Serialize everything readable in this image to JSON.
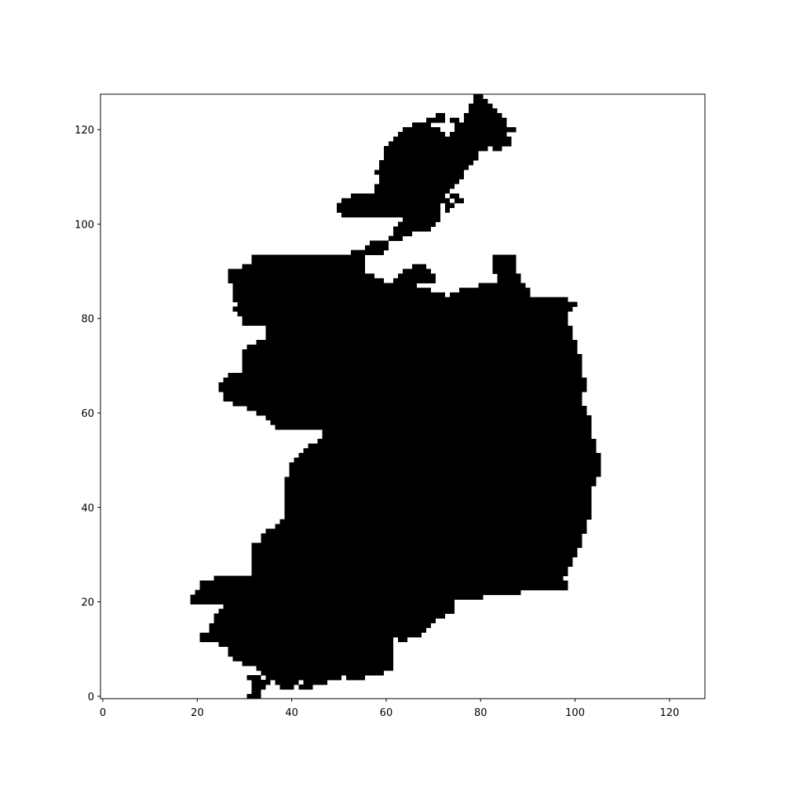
{
  "chart_data": {
    "type": "heatmap",
    "title": "",
    "xlabel": "",
    "ylabel": "",
    "xlim": [
      -0.5,
      127.5
    ],
    "ylim": [
      -0.5,
      127.5
    ],
    "x_ticks": [
      0,
      20,
      40,
      60,
      80,
      100,
      120
    ],
    "y_ticks": [
      0,
      20,
      40,
      60,
      80,
      100,
      120
    ],
    "x_tick_labels": [
      "0",
      "20",
      "40",
      "60",
      "80",
      "100",
      "120"
    ],
    "y_tick_labels": [
      "0",
      "20",
      "40",
      "60",
      "80",
      "100",
      "120"
    ],
    "grid": false,
    "legend": "none",
    "colormap": {
      "0": "#ffffff",
      "1": "#000000"
    },
    "land_row_spans": [
      [
        0,
        [
          [
            31,
            33
          ]
        ]
      ],
      [
        1,
        [
          [
            32,
            33
          ]
        ]
      ],
      [
        2,
        [
          [
            32,
            34
          ],
          [
            38,
            40
          ],
          [
            42,
            44
          ]
        ]
      ],
      [
        3,
        [
          [
            32,
            35
          ],
          [
            37,
            41
          ],
          [
            43,
            47
          ]
        ]
      ],
      [
        4,
        [
          [
            31,
            33
          ],
          [
            35,
            50
          ],
          [
            52,
            55
          ]
        ]
      ],
      [
        5,
        [
          [
            34,
            59
          ]
        ]
      ],
      [
        6,
        [
          [
            33,
            61
          ]
        ]
      ],
      [
        7,
        [
          [
            30,
            61
          ]
        ]
      ],
      [
        8,
        [
          [
            28,
            61
          ]
        ]
      ],
      [
        9,
        [
          [
            27,
            61
          ]
        ]
      ],
      [
        10,
        [
          [
            27,
            61
          ]
        ]
      ],
      [
        11,
        [
          [
            25,
            61
          ]
        ]
      ],
      [
        12,
        [
          [
            21,
            61
          ],
          [
            63,
            64
          ]
        ]
      ],
      [
        13,
        [
          [
            21,
            67
          ]
        ]
      ],
      [
        14,
        [
          [
            23,
            68
          ]
        ]
      ],
      [
        15,
        [
          [
            23,
            69
          ]
        ]
      ],
      [
        16,
        [
          [
            24,
            70
          ]
        ]
      ],
      [
        17,
        [
          [
            24,
            72
          ]
        ]
      ],
      [
        18,
        [
          [
            25,
            74
          ]
        ]
      ],
      [
        19,
        [
          [
            26,
            74
          ]
        ]
      ],
      [
        20,
        [
          [
            19,
            74
          ]
        ]
      ],
      [
        21,
        [
          [
            19,
            80
          ]
        ]
      ],
      [
        22,
        [
          [
            20,
            88
          ]
        ]
      ],
      [
        23,
        [
          [
            21,
            98
          ]
        ]
      ],
      [
        24,
        [
          [
            21,
            98
          ]
        ]
      ],
      [
        25,
        [
          [
            24,
            97
          ]
        ]
      ],
      [
        26,
        [
          [
            32,
            98
          ]
        ]
      ],
      [
        27,
        [
          [
            32,
            98
          ]
        ]
      ],
      [
        28,
        [
          [
            32,
            99
          ]
        ]
      ],
      [
        29,
        [
          [
            32,
            99
          ]
        ]
      ],
      [
        30,
        [
          [
            32,
            100
          ]
        ]
      ],
      [
        31,
        [
          [
            32,
            100
          ]
        ]
      ],
      [
        32,
        [
          [
            32,
            101
          ]
        ]
      ],
      [
        33,
        [
          [
            34,
            101
          ]
        ]
      ],
      [
        34,
        [
          [
            34,
            101
          ]
        ]
      ],
      [
        35,
        [
          [
            35,
            102
          ]
        ]
      ],
      [
        36,
        [
          [
            37,
            102
          ]
        ]
      ],
      [
        37,
        [
          [
            38,
            102
          ]
        ]
      ],
      [
        38,
        [
          [
            39,
            103
          ]
        ]
      ],
      [
        39,
        [
          [
            39,
            103
          ]
        ]
      ],
      [
        40,
        [
          [
            39,
            103
          ]
        ]
      ],
      [
        41,
        [
          [
            39,
            103
          ]
        ]
      ],
      [
        42,
        [
          [
            39,
            103
          ]
        ]
      ],
      [
        43,
        [
          [
            39,
            103
          ]
        ]
      ],
      [
        44,
        [
          [
            39,
            103
          ]
        ]
      ],
      [
        45,
        [
          [
            39,
            104
          ]
        ]
      ],
      [
        46,
        [
          [
            39,
            104
          ]
        ]
      ],
      [
        47,
        [
          [
            40,
            105
          ]
        ]
      ],
      [
        48,
        [
          [
            40,
            105
          ]
        ]
      ],
      [
        49,
        [
          [
            40,
            105
          ]
        ]
      ],
      [
        50,
        [
          [
            41,
            105
          ]
        ]
      ],
      [
        51,
        [
          [
            42,
            105
          ]
        ]
      ],
      [
        52,
        [
          [
            43,
            104
          ]
        ]
      ],
      [
        53,
        [
          [
            44,
            104
          ]
        ]
      ],
      [
        54,
        [
          [
            46,
            104
          ]
        ]
      ],
      [
        55,
        [
          [
            47,
            103
          ]
        ]
      ],
      [
        56,
        [
          [
            47,
            103
          ]
        ]
      ],
      [
        57,
        [
          [
            37,
            103
          ]
        ]
      ],
      [
        58,
        [
          [
            36,
            103
          ]
        ]
      ],
      [
        59,
        [
          [
            35,
            103
          ]
        ]
      ],
      [
        60,
        [
          [
            33,
            102
          ]
        ]
      ],
      [
        61,
        [
          [
            31,
            102
          ]
        ]
      ],
      [
        62,
        [
          [
            28,
            101
          ]
        ]
      ],
      [
        63,
        [
          [
            26,
            101
          ]
        ]
      ],
      [
        64,
        [
          [
            26,
            101
          ]
        ]
      ],
      [
        65,
        [
          [
            25,
            102
          ]
        ]
      ],
      [
        66,
        [
          [
            25,
            102
          ]
        ]
      ],
      [
        67,
        [
          [
            26,
            102
          ]
        ]
      ],
      [
        68,
        [
          [
            27,
            101
          ]
        ]
      ],
      [
        69,
        [
          [
            30,
            101
          ]
        ]
      ],
      [
        70,
        [
          [
            30,
            101
          ]
        ]
      ],
      [
        71,
        [
          [
            30,
            101
          ]
        ]
      ],
      [
        72,
        [
          [
            30,
            101
          ]
        ]
      ],
      [
        73,
        [
          [
            30,
            100
          ]
        ]
      ],
      [
        74,
        [
          [
            31,
            100
          ]
        ]
      ],
      [
        75,
        [
          [
            33,
            100
          ]
        ]
      ],
      [
        76,
        [
          [
            35,
            99
          ]
        ]
      ],
      [
        77,
        [
          [
            35,
            99
          ]
        ]
      ],
      [
        78,
        [
          [
            35,
            99
          ]
        ]
      ],
      [
        79,
        [
          [
            30,
            98
          ]
        ]
      ],
      [
        80,
        [
          [
            30,
            98
          ]
        ]
      ],
      [
        81,
        [
          [
            29,
            98
          ]
        ]
      ],
      [
        82,
        [
          [
            28,
            99
          ]
        ]
      ],
      [
        83,
        [
          [
            29,
            100
          ]
        ]
      ],
      [
        84,
        [
          [
            28,
            98
          ]
        ]
      ],
      [
        85,
        [
          [
            28,
            72
          ],
          [
            74,
            90
          ]
        ]
      ],
      [
        86,
        [
          [
            28,
            69
          ],
          [
            76,
            90
          ]
        ]
      ],
      [
        87,
        [
          [
            28,
            66
          ],
          [
            80,
            89
          ]
        ]
      ],
      [
        88,
        [
          [
            27,
            59
          ],
          [
            62,
            70
          ],
          [
            84,
            88
          ]
        ]
      ],
      [
        89,
        [
          [
            27,
            57
          ],
          [
            63,
            70
          ],
          [
            84,
            88
          ]
        ]
      ],
      [
        90,
        [
          [
            27,
            55
          ],
          [
            64,
            69
          ],
          [
            83,
            87
          ]
        ]
      ],
      [
        91,
        [
          [
            30,
            55
          ],
          [
            66,
            68
          ],
          [
            83,
            87
          ]
        ]
      ],
      [
        92,
        [
          [
            32,
            55
          ],
          [
            83,
            87
          ]
        ]
      ],
      [
        93,
        [
          [
            32,
            55
          ],
          [
            83,
            87
          ]
        ]
      ],
      [
        94,
        [
          [
            53,
            59
          ]
        ]
      ],
      [
        95,
        [
          [
            56,
            60
          ]
        ]
      ],
      [
        96,
        [
          [
            57,
            60
          ]
        ]
      ],
      [
        97,
        [
          [
            61,
            63
          ]
        ]
      ],
      [
        98,
        [
          [
            62,
            65
          ]
        ]
      ],
      [
        99,
        [
          [
            62,
            66
          ],
          [
            67,
            69
          ]
        ]
      ],
      [
        100,
        [
          [
            63,
            70
          ]
        ]
      ],
      [
        101,
        [
          [
            64,
            71
          ]
        ]
      ],
      [
        102,
        [
          [
            51,
            71
          ]
        ]
      ],
      [
        103,
        [
          [
            50,
            71
          ],
          [
            73,
            73
          ]
        ]
      ],
      [
        104,
        [
          [
            50,
            71
          ],
          [
            73,
            74
          ]
        ]
      ],
      [
        105,
        [
          [
            51,
            73
          ],
          [
            75,
            76
          ]
        ]
      ],
      [
        106,
        [
          [
            53,
            72
          ],
          [
            74,
            75
          ]
        ]
      ],
      [
        107,
        [
          [
            58,
            73
          ]
        ]
      ],
      [
        108,
        [
          [
            58,
            74
          ]
        ]
      ],
      [
        109,
        [
          [
            59,
            75
          ]
        ]
      ],
      [
        110,
        [
          [
            59,
            76
          ]
        ]
      ],
      [
        111,
        [
          [
            58,
            76
          ]
        ]
      ],
      [
        112,
        [
          [
            59,
            77
          ]
        ]
      ],
      [
        113,
        [
          [
            59,
            78
          ]
        ]
      ],
      [
        114,
        [
          [
            60,
            79
          ]
        ]
      ],
      [
        115,
        [
          [
            60,
            79
          ]
        ]
      ],
      [
        116,
        [
          [
            60,
            81
          ],
          [
            83,
            84
          ]
        ]
      ],
      [
        117,
        [
          [
            61,
            86
          ]
        ]
      ],
      [
        118,
        [
          [
            62,
            86
          ]
        ]
      ],
      [
        119,
        [
          [
            63,
            72
          ],
          [
            74,
            85
          ]
        ]
      ],
      [
        120,
        [
          [
            64,
            71
          ],
          [
            75,
            87
          ]
        ]
      ],
      [
        121,
        [
          [
            66,
            69
          ],
          [
            75,
            85
          ]
        ]
      ],
      [
        122,
        [
          [
            69,
            72
          ],
          [
            74,
            75
          ],
          [
            77,
            85
          ]
        ]
      ],
      [
        123,
        [
          [
            71,
            72
          ],
          [
            77,
            84
          ]
        ]
      ],
      [
        124,
        [
          [
            78,
            83
          ]
        ]
      ],
      [
        125,
        [
          [
            78,
            82
          ]
        ]
      ],
      [
        126,
        [
          [
            79,
            81
          ]
        ]
      ],
      [
        127,
        [
          [
            79,
            80
          ]
        ]
      ]
    ]
  }
}
